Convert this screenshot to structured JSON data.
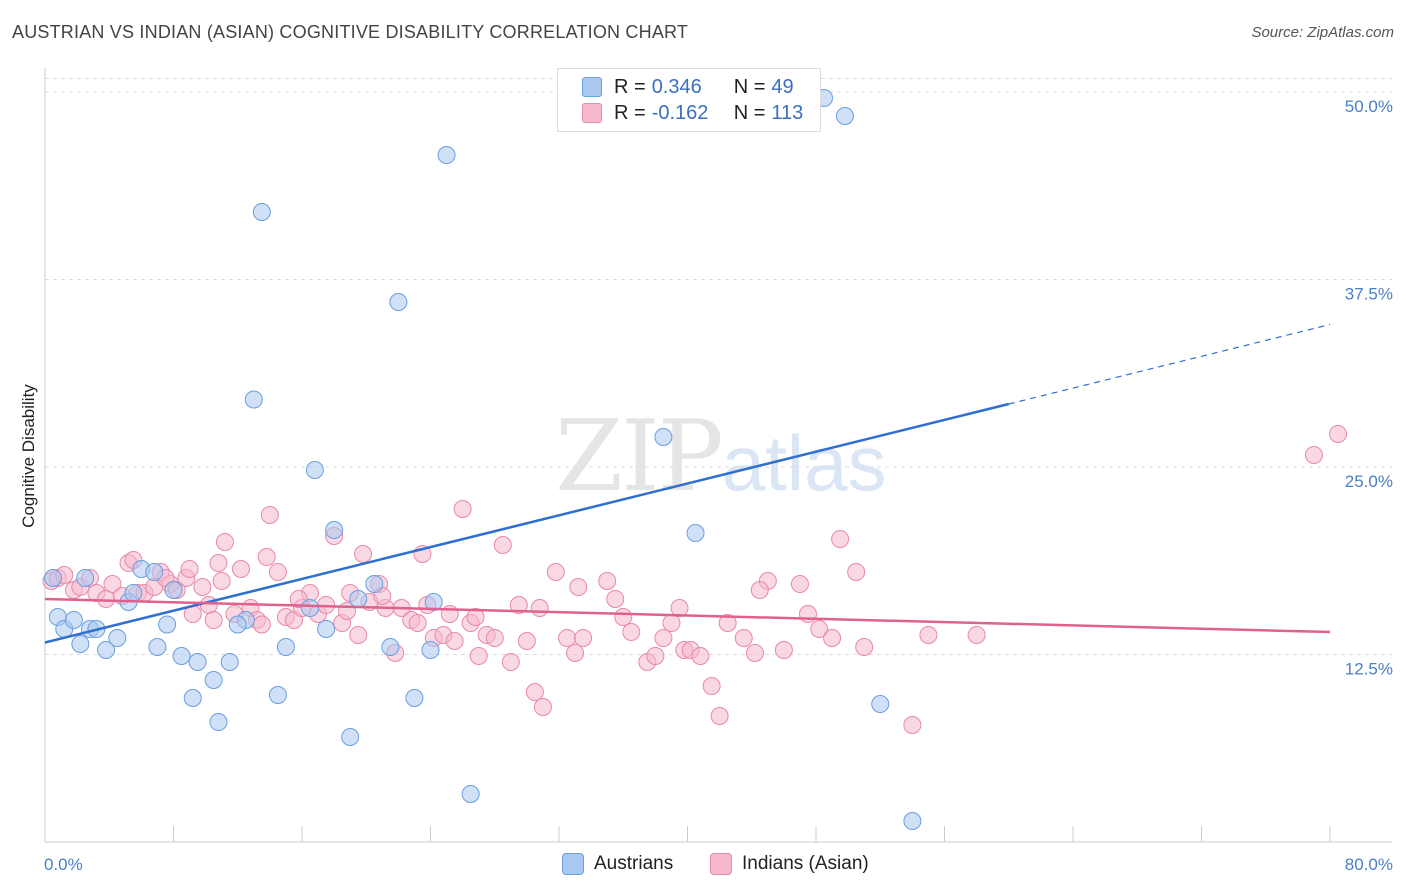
{
  "title": "AUSTRIAN VS INDIAN (ASIAN) COGNITIVE DISABILITY CORRELATION CHART",
  "source": "Source: ZipAtlas.com",
  "watermark": {
    "zip": "ZIP",
    "atlas": "atlas"
  },
  "legend": {
    "austrians": {
      "r_label": "R =",
      "r_value": "0.346",
      "n_label": "N =",
      "n_value": "49"
    },
    "indians": {
      "r_label": "R =",
      "r_value": "-0.162",
      "n_label": "N =",
      "n_value": "113"
    }
  },
  "bottom_legend": {
    "austrians": "Austrians",
    "indians": "Indians (Asian)"
  },
  "colors": {
    "austrians_fill": "#a9c8f0",
    "austrians_stroke": "#6a9ee0",
    "austrians_line": "#2f6fcf",
    "indians_fill": "#f5b8cc",
    "indians_stroke": "#e889a8",
    "indians_line": "#e0608e",
    "axis_label": "#4a7fc8"
  },
  "chart_data": {
    "type": "scatter",
    "title": "AUSTRIAN VS INDIAN (ASIAN) COGNITIVE DISABILITY CORRELATION CHART",
    "xlabel": "",
    "ylabel": "Cognitive Disability",
    "xlim": [
      0,
      80
    ],
    "ylim": [
      0,
      52
    ],
    "x_tick_labels": [
      "0.0%",
      "80.0%"
    ],
    "y_ticks": [
      12.5,
      25.0,
      37.5,
      50.0
    ],
    "y_tick_labels": [
      "12.5%",
      "25.0%",
      "37.5%",
      "50.0%"
    ],
    "grid": true,
    "series": [
      {
        "name": "Austrians",
        "points": [
          [
            0.5,
            17.6
          ],
          [
            0.8,
            15.0
          ],
          [
            1.2,
            14.2
          ],
          [
            1.8,
            14.8
          ],
          [
            2.2,
            13.2
          ],
          [
            2.8,
            14.2
          ],
          [
            3.8,
            12.8
          ],
          [
            4.5,
            13.6
          ],
          [
            2.5,
            17.6
          ],
          [
            3.2,
            14.2
          ],
          [
            5.2,
            16.0
          ],
          [
            5.5,
            16.6
          ],
          [
            6.0,
            18.2
          ],
          [
            7.0,
            13.0
          ],
          [
            7.6,
            14.5
          ],
          [
            8.5,
            12.4
          ],
          [
            9.5,
            12.0
          ],
          [
            9.2,
            9.6
          ],
          [
            10.5,
            10.8
          ],
          [
            10.8,
            8.0
          ],
          [
            11.5,
            12.0
          ],
          [
            12.5,
            14.8
          ],
          [
            12.0,
            14.5
          ],
          [
            13.5,
            42.0
          ],
          [
            14.5,
            9.8
          ],
          [
            15.0,
            13.0
          ],
          [
            16.5,
            15.6
          ],
          [
            16.8,
            24.8
          ],
          [
            17.5,
            14.2
          ],
          [
            18.0,
            20.8
          ],
          [
            19.0,
            7.0
          ],
          [
            19.5,
            16.2
          ],
          [
            20.5,
            17.2
          ],
          [
            21.5,
            13.0
          ],
          [
            22.0,
            36.0
          ],
          [
            23.0,
            9.6
          ],
          [
            24.0,
            12.8
          ],
          [
            24.2,
            16.0
          ],
          [
            25.0,
            45.8
          ],
          [
            26.5,
            3.2
          ],
          [
            38.5,
            27.0
          ],
          [
            40.5,
            20.6
          ],
          [
            48.5,
            49.6
          ],
          [
            49.8,
            48.4
          ],
          [
            52.0,
            9.2
          ],
          [
            54.0,
            1.4
          ],
          [
            6.8,
            18.0
          ],
          [
            8.0,
            16.8
          ],
          [
            13.0,
            29.5
          ]
        ]
      },
      {
        "name": "Indians (Asian)",
        "points": [
          [
            0.4,
            17.4
          ],
          [
            0.8,
            17.6
          ],
          [
            1.2,
            17.8
          ],
          [
            1.8,
            16.8
          ],
          [
            2.2,
            17.0
          ],
          [
            2.8,
            17.6
          ],
          [
            3.2,
            16.6
          ],
          [
            3.8,
            16.2
          ],
          [
            4.2,
            17.2
          ],
          [
            4.8,
            16.4
          ],
          [
            5.2,
            18.6
          ],
          [
            5.8,
            16.6
          ],
          [
            6.2,
            16.6
          ],
          [
            6.8,
            17.0
          ],
          [
            7.2,
            18.0
          ],
          [
            7.8,
            17.2
          ],
          [
            8.2,
            16.8
          ],
          [
            8.8,
            17.6
          ],
          [
            9.2,
            15.2
          ],
          [
            9.8,
            17.0
          ],
          [
            10.2,
            15.8
          ],
          [
            10.5,
            14.8
          ],
          [
            10.8,
            18.6
          ],
          [
            11.2,
            20.0
          ],
          [
            11.8,
            15.2
          ],
          [
            12.2,
            18.2
          ],
          [
            12.8,
            15.6
          ],
          [
            13.2,
            14.8
          ],
          [
            13.5,
            14.5
          ],
          [
            14.0,
            21.8
          ],
          [
            14.5,
            18.0
          ],
          [
            15.0,
            15.0
          ],
          [
            15.5,
            14.8
          ],
          [
            16.0,
            15.6
          ],
          [
            16.5,
            16.6
          ],
          [
            17.0,
            15.2
          ],
          [
            17.5,
            15.8
          ],
          [
            18.0,
            20.4
          ],
          [
            18.5,
            14.6
          ],
          [
            19.0,
            16.6
          ],
          [
            19.5,
            13.8
          ],
          [
            19.8,
            19.2
          ],
          [
            20.2,
            16.0
          ],
          [
            20.8,
            17.2
          ],
          [
            21.2,
            15.6
          ],
          [
            21.8,
            12.6
          ],
          [
            22.2,
            15.6
          ],
          [
            22.8,
            14.8
          ],
          [
            23.2,
            14.6
          ],
          [
            23.8,
            15.8
          ],
          [
            24.2,
            13.6
          ],
          [
            24.8,
            13.8
          ],
          [
            25.2,
            15.2
          ],
          [
            25.5,
            13.4
          ],
          [
            26.0,
            22.2
          ],
          [
            26.5,
            14.6
          ],
          [
            27.0,
            12.4
          ],
          [
            27.5,
            13.8
          ],
          [
            28.0,
            13.6
          ],
          [
            28.5,
            19.8
          ],
          [
            29.0,
            12.0
          ],
          [
            29.5,
            15.8
          ],
          [
            30.0,
            13.4
          ],
          [
            30.5,
            10.0
          ],
          [
            31.0,
            9.0
          ],
          [
            31.8,
            18.0
          ],
          [
            32.5,
            13.6
          ],
          [
            33.0,
            12.6
          ],
          [
            33.5,
            13.6
          ],
          [
            35.0,
            17.4
          ],
          [
            35.5,
            16.2
          ],
          [
            36.5,
            14.0
          ],
          [
            37.5,
            12.0
          ],
          [
            38.0,
            12.4
          ],
          [
            38.5,
            13.6
          ],
          [
            39.0,
            14.6
          ],
          [
            39.8,
            12.8
          ],
          [
            40.2,
            12.8
          ],
          [
            40.8,
            12.4
          ],
          [
            41.5,
            10.4
          ],
          [
            42.0,
            8.4
          ],
          [
            42.5,
            14.6
          ],
          [
            43.5,
            13.6
          ],
          [
            44.2,
            12.6
          ],
          [
            45.0,
            17.4
          ],
          [
            46.0,
            12.8
          ],
          [
            47.0,
            17.2
          ],
          [
            47.5,
            15.2
          ],
          [
            48.2,
            14.2
          ],
          [
            49.0,
            13.6
          ],
          [
            49.5,
            20.2
          ],
          [
            50.5,
            18.0
          ],
          [
            51.0,
            13.0
          ],
          [
            54.0,
            7.8
          ],
          [
            55.0,
            13.8
          ],
          [
            58.0,
            13.8
          ],
          [
            79.0,
            25.8
          ],
          [
            80.5,
            27.2
          ],
          [
            5.5,
            18.8
          ],
          [
            7.5,
            17.6
          ],
          [
            9.0,
            18.2
          ],
          [
            11.0,
            17.4
          ],
          [
            13.8,
            19.0
          ],
          [
            15.8,
            16.2
          ],
          [
            18.8,
            15.4
          ],
          [
            21.0,
            16.4
          ],
          [
            23.5,
            19.2
          ],
          [
            26.8,
            15.0
          ],
          [
            30.8,
            15.6
          ],
          [
            33.2,
            17.0
          ],
          [
            36.0,
            15.0
          ],
          [
            39.5,
            15.6
          ],
          [
            44.5,
            16.8
          ]
        ]
      }
    ],
    "trend_lines": [
      {
        "name": "Austrians",
        "x": [
          0,
          60
        ],
        "y": [
          13.3,
          29.2
        ],
        "dashed_to": [
          80,
          34.5
        ]
      },
      {
        "name": "Indians (Asian)",
        "x": [
          0,
          80
        ],
        "y": [
          16.2,
          14.0
        ]
      }
    ]
  }
}
